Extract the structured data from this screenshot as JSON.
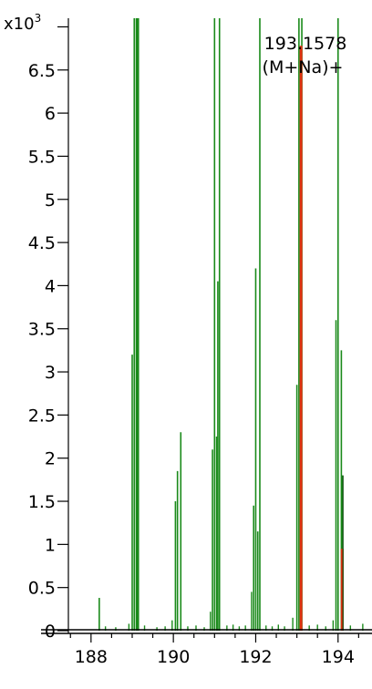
{
  "chart_data": {
    "type": "bar",
    "subtype": "mass-spectrum",
    "title": "",
    "xlabel": "",
    "ylabel": "",
    "y_multiplier": {
      "base": "x10",
      "exponent": "3"
    },
    "xlim": [
      187.45,
      194.78
    ],
    "ylim": [
      0,
      7.1
    ],
    "x_ticks": [
      188,
      190,
      192,
      194
    ],
    "x_tick_labels": [
      "188",
      "190",
      "192",
      "194"
    ],
    "y_ticks": [
      0,
      0.5,
      1,
      1.5,
      2,
      2.5,
      3,
      3.5,
      4,
      4.5,
      5,
      5.5,
      6,
      6.5,
      7
    ],
    "y_tick_labels": [
      "0",
      "0.5",
      "1",
      "1.5",
      "2",
      "2.5",
      "3",
      "3.5",
      "4",
      "4.5",
      "5",
      "5.5",
      "6",
      "6.5",
      ""
    ],
    "grid": false,
    "legend": "none",
    "colors": {
      "main": "#1a8a1a",
      "highlight": "#e03010",
      "dark": "#0a4a0a",
      "axis": "#000000"
    },
    "series": [
      {
        "color": "main",
        "peaks": [
          {
            "x": 188.2,
            "y": 0.38
          },
          {
            "x": 189.0,
            "y": 3.2
          },
          {
            "x": 189.05,
            "y": 7.1
          },
          {
            "x": 189.1,
            "y": 7.1
          },
          {
            "x": 189.12,
            "y": 7.1
          },
          {
            "x": 189.15,
            "y": 7.1
          },
          {
            "x": 190.05,
            "y": 1.5
          },
          {
            "x": 190.1,
            "y": 1.85
          },
          {
            "x": 190.18,
            "y": 2.3
          },
          {
            "x": 190.95,
            "y": 2.1
          },
          {
            "x": 191.0,
            "y": 7.1
          },
          {
            "x": 191.05,
            "y": 2.25
          },
          {
            "x": 191.08,
            "y": 4.05
          },
          {
            "x": 191.12,
            "y": 7.1
          },
          {
            "x": 191.95,
            "y": 1.45
          },
          {
            "x": 192.0,
            "y": 4.2
          },
          {
            "x": 192.05,
            "y": 1.15
          },
          {
            "x": 192.1,
            "y": 7.1
          },
          {
            "x": 193.0,
            "y": 2.85
          },
          {
            "x": 193.05,
            "y": 7.1
          },
          {
            "x": 193.12,
            "y": 7.1
          },
          {
            "x": 193.95,
            "y": 3.6
          },
          {
            "x": 194.0,
            "y": 7.1
          },
          {
            "x": 194.08,
            "y": 3.25
          },
          {
            "x": 194.1,
            "y": 1.8
          }
        ]
      },
      {
        "color": "highlight",
        "peaks": [
          {
            "x": 193.1,
            "y": 6.78
          },
          {
            "x": 194.1,
            "y": 0.95
          }
        ]
      }
    ],
    "noise": [
      {
        "x": 188.35,
        "y": 0.05
      },
      {
        "x": 188.6,
        "y": 0.04
      },
      {
        "x": 188.92,
        "y": 0.08
      },
      {
        "x": 189.3,
        "y": 0.06
      },
      {
        "x": 189.6,
        "y": 0.04
      },
      {
        "x": 189.8,
        "y": 0.05
      },
      {
        "x": 189.97,
        "y": 0.12
      },
      {
        "x": 190.35,
        "y": 0.05
      },
      {
        "x": 190.55,
        "y": 0.06
      },
      {
        "x": 190.75,
        "y": 0.04
      },
      {
        "x": 190.9,
        "y": 0.22
      },
      {
        "x": 191.3,
        "y": 0.06
      },
      {
        "x": 191.45,
        "y": 0.07
      },
      {
        "x": 191.6,
        "y": 0.05
      },
      {
        "x": 191.75,
        "y": 0.06
      },
      {
        "x": 191.9,
        "y": 0.45
      },
      {
        "x": 192.25,
        "y": 0.06
      },
      {
        "x": 192.4,
        "y": 0.05
      },
      {
        "x": 192.55,
        "y": 0.07
      },
      {
        "x": 192.7,
        "y": 0.05
      },
      {
        "x": 192.9,
        "y": 0.15
      },
      {
        "x": 193.3,
        "y": 0.06
      },
      {
        "x": 193.5,
        "y": 0.07
      },
      {
        "x": 193.7,
        "y": 0.05
      },
      {
        "x": 193.88,
        "y": 0.12
      },
      {
        "x": 194.3,
        "y": 0.06
      },
      {
        "x": 194.6,
        "y": 0.08
      }
    ],
    "annotations": [
      {
        "text": "193.1578",
        "x": 193.1
      },
      {
        "text": "(M+Na)+",
        "x": 193.1
      }
    ]
  }
}
